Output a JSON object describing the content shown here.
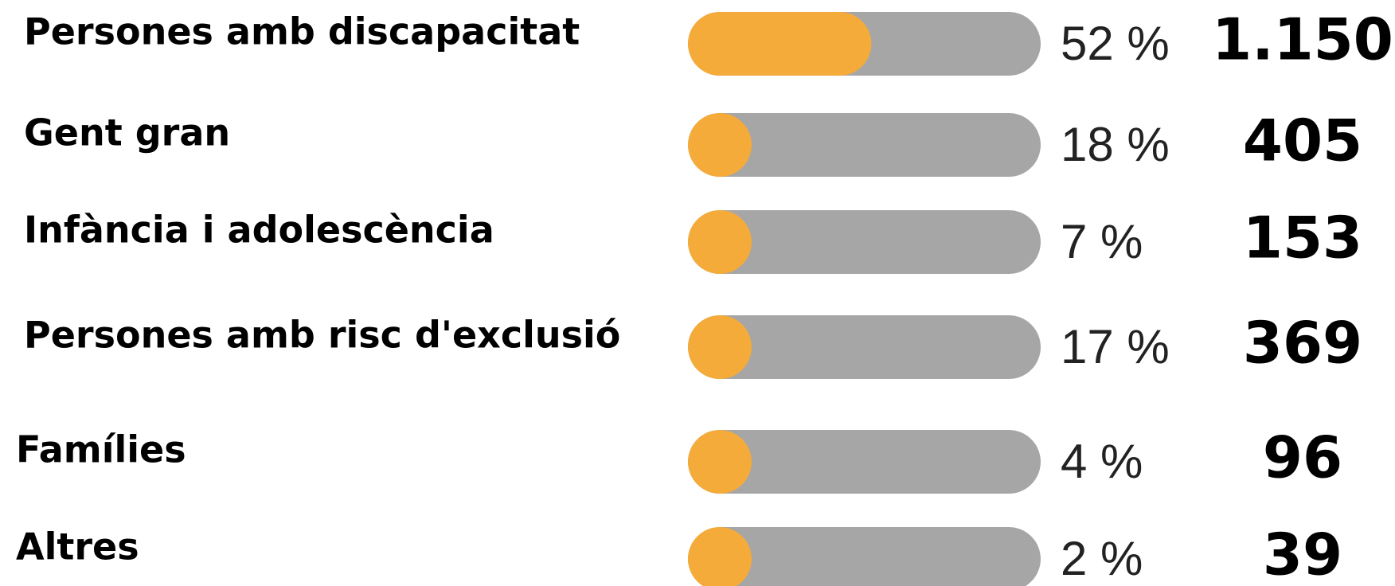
{
  "chart_data": {
    "type": "bar",
    "orientation": "horizontal",
    "categories": [
      "Persones amb discapacitat",
      "Gent gran",
      "Infància i adolescència",
      "Persones amb risc d'exclusió",
      "Famílies",
      "Altres"
    ],
    "values": [
      52,
      18,
      7,
      17,
      4,
      2
    ],
    "value_labels": [
      "52 %",
      "18 %",
      "7 %",
      "17 %",
      "4 %",
      "2 %"
    ],
    "counts": {
      "values": [
        1150,
        405,
        153,
        369,
        96,
        39
      ],
      "value_labels": [
        "1.150",
        "405",
        "153",
        "369",
        "96",
        "39"
      ]
    },
    "xlim": [
      0,
      100
    ],
    "color": "#f5ab3a",
    "track_color": "#a6a6a6"
  }
}
